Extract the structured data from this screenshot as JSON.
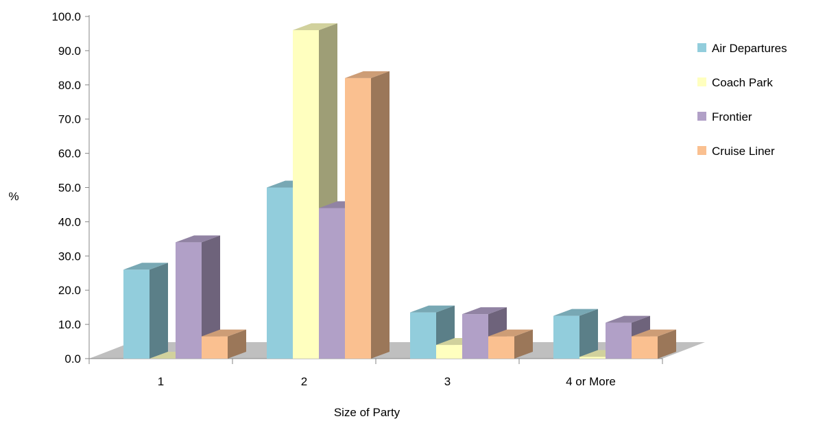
{
  "chart_data": {
    "type": "bar",
    "style": "3d-clustered-column",
    "title": "",
    "xlabel": "Size of Party",
    "ylabel": "%",
    "ylim": [
      0,
      100
    ],
    "yticks": [
      "0.0",
      "10.0",
      "20.0",
      "30.0",
      "40.0",
      "50.0",
      "60.0",
      "70.0",
      "80.0",
      "90.0",
      "100.0"
    ],
    "categories": [
      "1",
      "2",
      "3",
      "4 or More"
    ],
    "series": [
      {
        "name": "Air Departures",
        "color": "#92CDDC",
        "values": [
          26.0,
          50.0,
          13.5,
          12.5
        ]
      },
      {
        "name": "Coach Park",
        "color": "#FFFFBF",
        "values": [
          0.0,
          96.0,
          4.0,
          0.5
        ]
      },
      {
        "name": "Frontier",
        "color": "#B1A0C7",
        "values": [
          34.0,
          44.0,
          13.0,
          10.5
        ]
      },
      {
        "name": "Cruise Liner",
        "color": "#FAC090",
        "values": [
          6.5,
          82.0,
          6.5,
          6.5
        ]
      }
    ],
    "legend_position": "right",
    "grid": false
  }
}
